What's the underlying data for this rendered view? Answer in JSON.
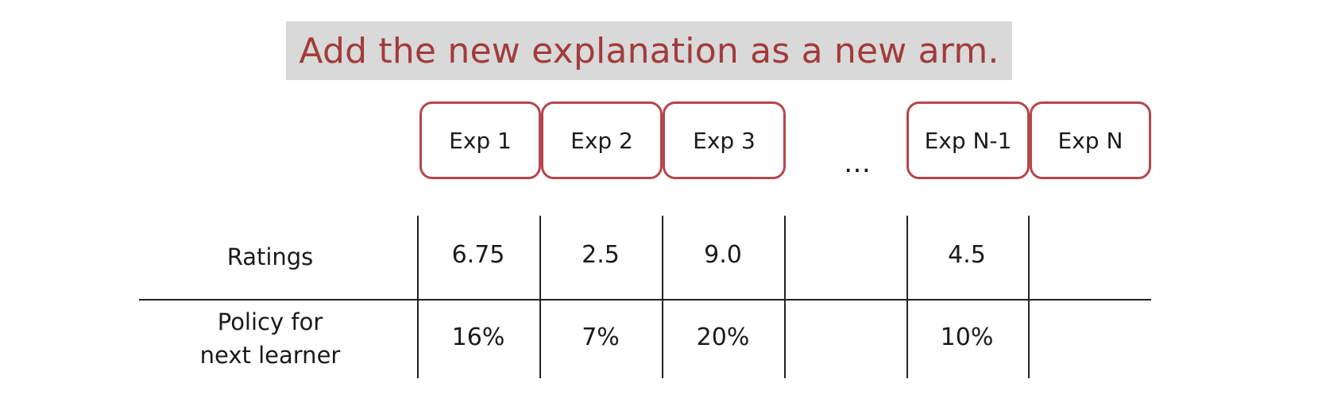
{
  "title": "Add the new explanation as a new arm.",
  "arms": [
    "Exp 1",
    "Exp 2",
    "Exp 3",
    "Exp N-1",
    "Exp N"
  ],
  "ellipsis": "…",
  "rows": {
    "ratings": {
      "label": "Ratings",
      "values": [
        "6.75",
        "2.5",
        "9.0",
        "",
        "4.5",
        ""
      ]
    },
    "policy": {
      "label_line1": "Policy for",
      "label_line2": "next learner",
      "values": [
        "16%",
        "7%",
        "20%",
        "",
        "10%",
        ""
      ]
    }
  },
  "colors": {
    "title_text": "#a23b3b",
    "title_bg": "#d9d9d9",
    "arm_border": "#b5464d"
  }
}
